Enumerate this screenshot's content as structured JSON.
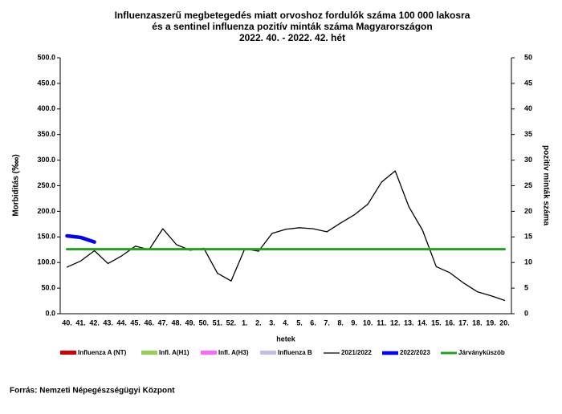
{
  "chart_data": {
    "type": "line",
    "title": [
      "Influenzaszerű megbetegedés miatt orvoshoz fordulók száma 100 000 lakosra",
      "és a sentinel influenza pozitív minták száma Magyarországon",
      "2022. 40. - 2022. 42. hét"
    ],
    "xlabel": "hetek",
    "ylabel": "Morbiditás (‱)",
    "y2label": "pozitív minták száma",
    "categories": [
      "40.",
      "41.",
      "42.",
      "43.",
      "44.",
      "45.",
      "46.",
      "47.",
      "48.",
      "49.",
      "50.",
      "51.",
      "52.",
      "1.",
      "2.",
      "3.",
      "4.",
      "5.",
      "6.",
      "7.",
      "8.",
      "9.",
      "10.",
      "11.",
      "12.",
      "13.",
      "14.",
      "15.",
      "16.",
      "17.",
      "18.",
      "19.",
      "20."
    ],
    "ylim": [
      0,
      500
    ],
    "yticks": [
      {
        "value": 0,
        "label": "0.0"
      },
      {
        "value": 50,
        "label": "50.0"
      },
      {
        "value": 100,
        "label": "100.0"
      },
      {
        "value": 150,
        "label": "150.0"
      },
      {
        "value": 200,
        "label": "200.0"
      },
      {
        "value": 250,
        "label": "250.0"
      },
      {
        "value": 300,
        "label": "300.0"
      },
      {
        "value": 350,
        "label": "350.0"
      },
      {
        "value": 400,
        "label": "400.0"
      },
      {
        "value": 450,
        "label": "450.0"
      },
      {
        "value": 500,
        "label": "500.0"
      }
    ],
    "y2lim": [
      0,
      50
    ],
    "y2ticks": [
      0,
      5,
      10,
      15,
      20,
      25,
      30,
      35,
      40,
      45,
      50
    ],
    "grid": false,
    "series": [
      {
        "name": "Influenza A (NT)",
        "color": "#d00000",
        "axis": "y2",
        "values": [
          null,
          null,
          null,
          null,
          null,
          null,
          null,
          null,
          null,
          null,
          null,
          null,
          null,
          null,
          null,
          null,
          null,
          null,
          null,
          null,
          null,
          null,
          null,
          null,
          null,
          null,
          null,
          null,
          null,
          null,
          null,
          null,
          null
        ]
      },
      {
        "name": "Infl. A(H1)",
        "color": "#92d050",
        "axis": "y2",
        "values": [
          null,
          null,
          null,
          null,
          null,
          null,
          null,
          null,
          null,
          null,
          null,
          null,
          null,
          null,
          null,
          null,
          null,
          null,
          null,
          null,
          null,
          null,
          null,
          null,
          null,
          null,
          null,
          null,
          null,
          null,
          null,
          null,
          null
        ]
      },
      {
        "name": "Infl. A(H3)",
        "color": "#ff66ff",
        "axis": "y2",
        "values": [
          null,
          null,
          null,
          null,
          null,
          null,
          null,
          null,
          null,
          null,
          null,
          null,
          null,
          null,
          null,
          null,
          null,
          null,
          null,
          null,
          null,
          null,
          null,
          null,
          null,
          null,
          null,
          null,
          null,
          null,
          null,
          null,
          null
        ]
      },
      {
        "name": "Influenza B",
        "color": "#c0c0f0",
        "axis": "y2",
        "values": [
          null,
          null,
          null,
          null,
          null,
          null,
          null,
          null,
          null,
          null,
          null,
          null,
          null,
          null,
          null,
          null,
          null,
          null,
          null,
          null,
          null,
          null,
          null,
          null,
          null,
          null,
          null,
          null,
          null,
          null,
          null,
          null,
          null
        ]
      },
      {
        "name": "2021/2022",
        "color": "#000000",
        "values": [
          91,
          103,
          123,
          98,
          113,
          132,
          125,
          166,
          135,
          124,
          128,
          79,
          64,
          127,
          122,
          157,
          165,
          168,
          166,
          160,
          177,
          193,
          214,
          257,
          279,
          209,
          163,
          92,
          80,
          60,
          43,
          35,
          26
        ]
      },
      {
        "name": "2022/2023",
        "color": "#0000ff",
        "values": [
          152,
          149,
          140,
          null,
          null,
          null,
          null,
          null,
          null,
          null,
          null,
          null,
          null,
          null,
          null,
          null,
          null,
          null,
          null,
          null,
          null,
          null,
          null,
          null,
          null,
          null,
          null,
          null,
          null,
          null,
          null,
          null,
          null
        ]
      },
      {
        "name": "Járványküszöb",
        "color": "#22a022",
        "values": [
          126,
          126,
          126,
          126,
          126,
          126,
          126,
          126,
          126,
          126,
          126,
          126,
          126,
          126,
          126,
          126,
          126,
          126,
          126,
          126,
          126,
          126,
          126,
          126,
          126,
          126,
          126,
          126,
          126,
          126,
          126,
          126,
          126
        ]
      }
    ],
    "source": "Forrás: Nemzeti Népegészségügyi Központ"
  }
}
